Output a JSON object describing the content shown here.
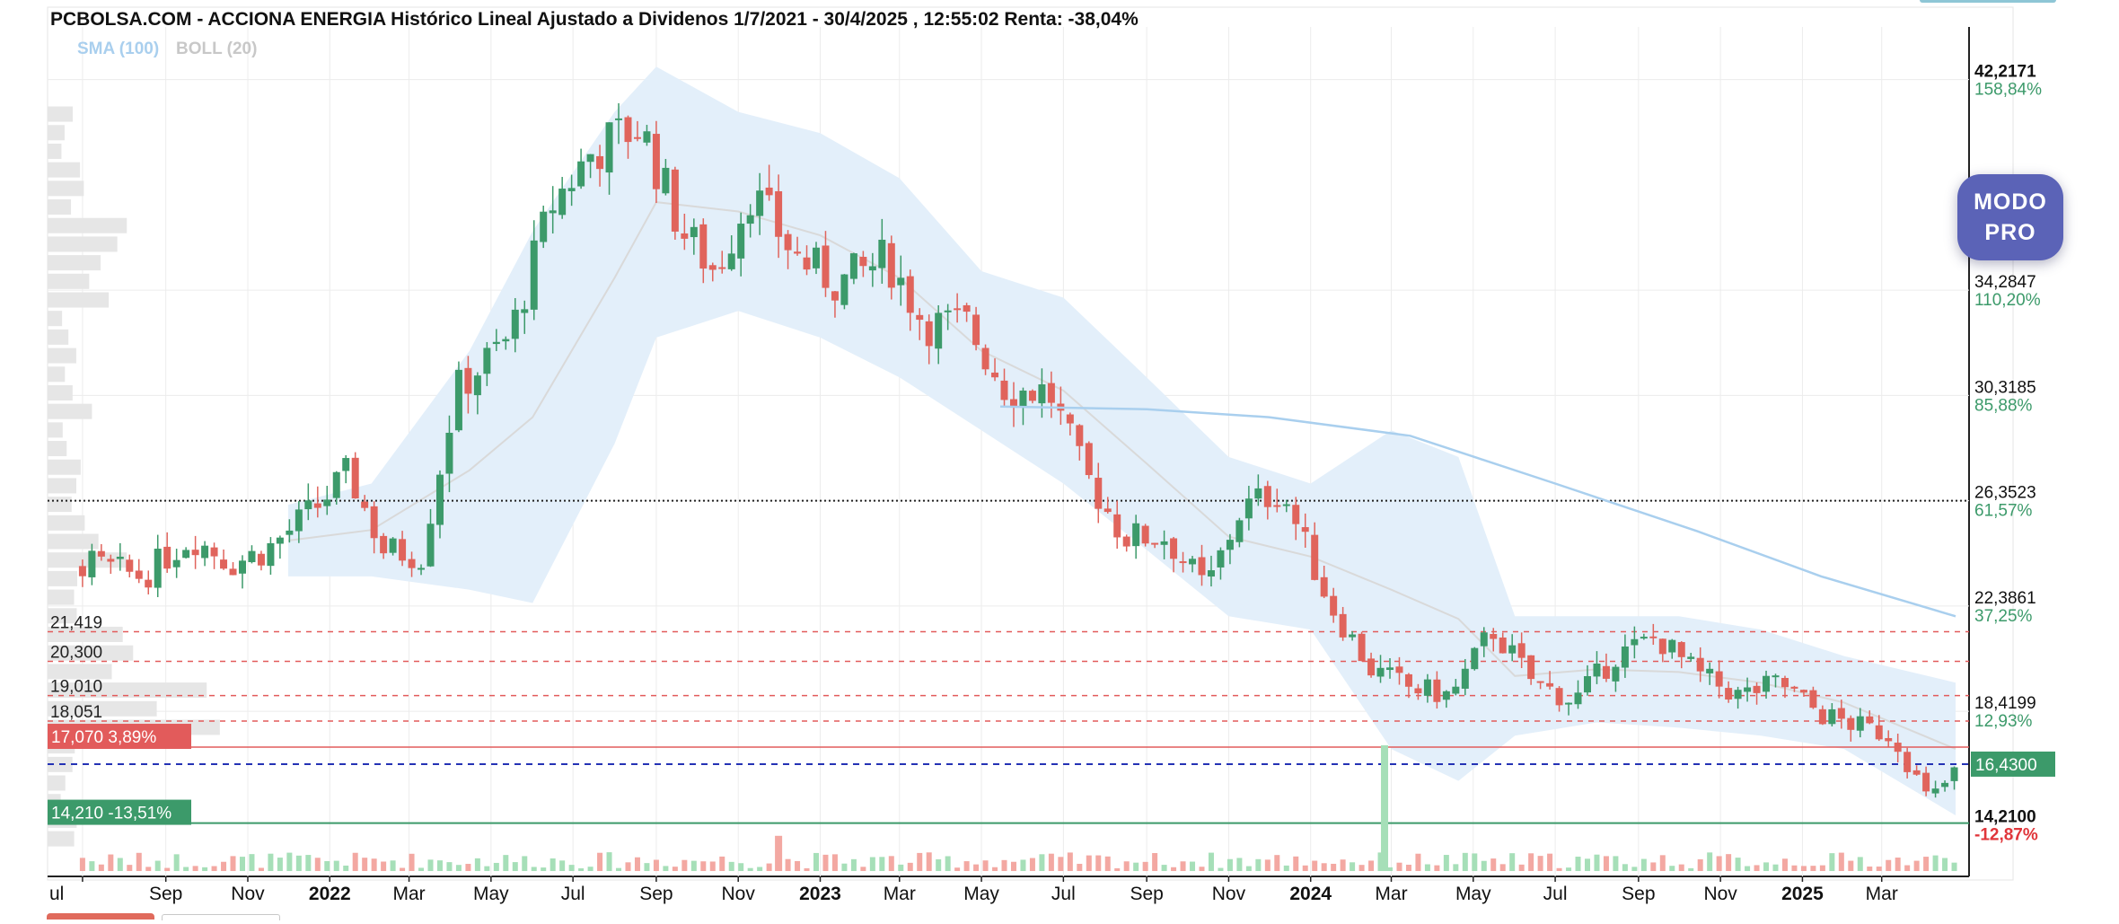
{
  "chart_data": {
    "type": "candlestick",
    "title": "PCBOLSA.COM - ACCIONA ENERGIA Histórico Lineal Ajustado a Dividenos 1/7/2021 - 30/4/2025 , 12:55:02 Renta: -38,04%",
    "legend": [
      {
        "label": "SMA (100)",
        "color": "#a9cfee"
      },
      {
        "label": "BOLL (20)",
        "color": "#c8c8c8"
      }
    ],
    "ylim": [
      12.2,
      44.2
    ],
    "y_ticks": [
      {
        "value": 42.2171,
        "label": "42,2171",
        "pct": "158,84%"
      },
      {
        "value": 34.2847,
        "label": "34,2847",
        "pct": "110,20%"
      },
      {
        "value": 30.3185,
        "label": "30,3185",
        "pct": "85,88%"
      },
      {
        "value": 26.3523,
        "label": "26,3523",
        "pct": "61,57%"
      },
      {
        "value": 22.3861,
        "label": "22,3861",
        "pct": "37,25%"
      },
      {
        "value": 18.4199,
        "label": "18,4199",
        "pct": "12,93%"
      }
    ],
    "x_ticks": [
      {
        "date": "2021-07-01",
        "label": "ul",
        "bold": false
      },
      {
        "date": "2021-09-01",
        "label": "Sep",
        "bold": false
      },
      {
        "date": "2021-11-01",
        "label": "Nov",
        "bold": false
      },
      {
        "date": "2022-01-01",
        "label": "2022",
        "bold": true
      },
      {
        "date": "2022-03-01",
        "label": "Mar",
        "bold": false
      },
      {
        "date": "2022-05-01",
        "label": "May",
        "bold": false
      },
      {
        "date": "2022-07-01",
        "label": "Jul",
        "bold": false
      },
      {
        "date": "2022-09-01",
        "label": "Sep",
        "bold": false
      },
      {
        "date": "2022-11-01",
        "label": "Nov",
        "bold": false
      },
      {
        "date": "2023-01-01",
        "label": "2023",
        "bold": true
      },
      {
        "date": "2023-03-01",
        "label": "Mar",
        "bold": false
      },
      {
        "date": "2023-05-01",
        "label": "May",
        "bold": false
      },
      {
        "date": "2023-07-01",
        "label": "Jul",
        "bold": false
      },
      {
        "date": "2023-09-01",
        "label": "Sep",
        "bold": false
      },
      {
        "date": "2023-11-01",
        "label": "Nov",
        "bold": false
      },
      {
        "date": "2024-01-01",
        "label": "2024",
        "bold": true
      },
      {
        "date": "2024-03-01",
        "label": "Mar",
        "bold": false
      },
      {
        "date": "2024-05-01",
        "label": "May",
        "bold": false
      },
      {
        "date": "2024-07-01",
        "label": "Jul",
        "bold": false
      },
      {
        "date": "2024-09-01",
        "label": "Sep",
        "bold": false
      },
      {
        "date": "2024-11-01",
        "label": "Nov",
        "bold": false
      },
      {
        "date": "2025-01-01",
        "label": "2025",
        "bold": true
      },
      {
        "date": "2025-03-01",
        "label": "Mar",
        "bold": false
      }
    ],
    "horizontal_levels": [
      {
        "value": 26.3523,
        "style": "black-dotted"
      },
      {
        "value": 21.419,
        "label": "21,419",
        "style": "red-dashed"
      },
      {
        "value": 20.3,
        "label": "20,300",
        "style": "red-dashed"
      },
      {
        "value": 19.01,
        "label": "19,010",
        "style": "red-dashed"
      },
      {
        "value": 18.051,
        "label": "18,051",
        "style": "red-dashed"
      },
      {
        "value": 17.07,
        "label": "17,070",
        "pct": "3,89%",
        "style": "red-solid"
      },
      {
        "value": 16.43,
        "style": "blue-dashed"
      },
      {
        "value": 14.21,
        "label": "14,210",
        "pct": "-13,51%",
        "style": "green-solid"
      }
    ],
    "last_price": {
      "value": 16.43,
      "label": "16,4300"
    },
    "low_marker": {
      "value": 14.21,
      "label": "14,2100",
      "pct": "-12,87%"
    },
    "price_path": [
      {
        "date": "2021-07-01",
        "close": 24.0
      },
      {
        "date": "2021-08-15",
        "close": 23.5
      },
      {
        "date": "2021-09-20",
        "close": 25.0
      },
      {
        "date": "2021-10-20",
        "close": 24.0
      },
      {
        "date": "2021-11-15",
        "close": 24.5
      },
      {
        "date": "2021-12-20",
        "close": 26.0
      },
      {
        "date": "2022-01-15",
        "close": 27.4
      },
      {
        "date": "2022-02-10",
        "close": 24.5
      },
      {
        "date": "2022-03-10",
        "close": 24.3
      },
      {
        "date": "2022-04-05",
        "close": 30.5
      },
      {
        "date": "2022-05-15",
        "close": 32.5
      },
      {
        "date": "2022-06-15",
        "close": 37.5
      },
      {
        "date": "2022-07-15",
        "close": 39.5
      },
      {
        "date": "2022-08-20",
        "close": 40.5
      },
      {
        "date": "2022-09-20",
        "close": 36.5
      },
      {
        "date": "2022-10-15",
        "close": 35.0
      },
      {
        "date": "2022-11-10",
        "close": 38.0
      },
      {
        "date": "2022-12-15",
        "close": 35.5
      },
      {
        "date": "2023-01-15",
        "close": 34.5
      },
      {
        "date": "2023-02-20",
        "close": 35.5
      },
      {
        "date": "2023-03-20",
        "close": 33.0
      },
      {
        "date": "2023-04-20",
        "close": 33.0
      },
      {
        "date": "2023-05-20",
        "close": 30.5
      },
      {
        "date": "2023-06-20",
        "close": 30.5
      },
      {
        "date": "2023-07-15",
        "close": 27.5
      },
      {
        "date": "2023-08-15",
        "close": 25.0
      },
      {
        "date": "2023-09-15",
        "close": 25.0
      },
      {
        "date": "2023-10-15",
        "close": 23.0
      },
      {
        "date": "2023-11-10",
        "close": 26.0
      },
      {
        "date": "2023-12-10",
        "close": 26.8
      },
      {
        "date": "2024-01-15",
        "close": 22.5
      },
      {
        "date": "2024-02-15",
        "close": 20.0
      },
      {
        "date": "2024-03-15",
        "close": 19.3
      },
      {
        "date": "2024-04-15",
        "close": 19.0
      },
      {
        "date": "2024-05-15",
        "close": 21.5
      },
      {
        "date": "2024-06-15",
        "close": 19.5
      },
      {
        "date": "2024-07-15",
        "close": 18.8
      },
      {
        "date": "2024-08-15",
        "close": 20.5
      },
      {
        "date": "2024-09-15",
        "close": 21.2
      },
      {
        "date": "2024-10-15",
        "close": 19.8
      },
      {
        "date": "2024-11-15",
        "close": 19.0
      },
      {
        "date": "2024-12-15",
        "close": 19.5
      },
      {
        "date": "2025-01-15",
        "close": 18.3
      },
      {
        "date": "2025-02-15",
        "close": 17.8
      },
      {
        "date": "2025-03-10",
        "close": 17.5
      },
      {
        "date": "2025-04-05",
        "close": 15.0
      },
      {
        "date": "2025-04-30",
        "close": 16.43
      }
    ],
    "sma100": [
      {
        "date": "2023-05-15",
        "value": 29.9
      },
      {
        "date": "2023-09-01",
        "value": 29.8
      },
      {
        "date": "2023-12-01",
        "value": 29.5
      },
      {
        "date": "2024-03-15",
        "value": 28.8
      },
      {
        "date": "2024-07-01",
        "value": 27.0
      },
      {
        "date": "2024-10-15",
        "value": 25.2
      },
      {
        "date": "2025-01-15",
        "value": 23.5
      },
      {
        "date": "2025-04-25",
        "value": 22.0
      }
    ],
    "boll_upper": [
      {
        "date": "2021-12-01",
        "value": 26.2
      },
      {
        "date": "2022-02-01",
        "value": 27.0
      },
      {
        "date": "2022-04-15",
        "value": 32.0
      },
      {
        "date": "2022-06-01",
        "value": 36.5
      },
      {
        "date": "2022-08-01",
        "value": 41.0
      },
      {
        "date": "2022-09-01",
        "value": 42.7
      },
      {
        "date": "2022-11-01",
        "value": 41.0
      },
      {
        "date": "2023-01-01",
        "value": 40.2
      },
      {
        "date": "2023-03-01",
        "value": 38.5
      },
      {
        "date": "2023-05-01",
        "value": 35.0
      },
      {
        "date": "2023-07-01",
        "value": 34.0
      },
      {
        "date": "2023-09-01",
        "value": 31.0
      },
      {
        "date": "2023-11-01",
        "value": 28.0
      },
      {
        "date": "2024-01-01",
        "value": 27.0
      },
      {
        "date": "2024-03-01",
        "value": 29.0
      },
      {
        "date": "2024-04-20",
        "value": 28.0
      },
      {
        "date": "2024-06-01",
        "value": 22.0
      },
      {
        "date": "2024-08-01",
        "value": 22.0
      },
      {
        "date": "2024-10-01",
        "value": 22.0
      },
      {
        "date": "2024-12-01",
        "value": 21.5
      },
      {
        "date": "2025-02-01",
        "value": 20.5
      },
      {
        "date": "2025-04-25",
        "value": 19.5
      }
    ],
    "boll_lower": [
      {
        "date": "2021-12-01",
        "value": 23.5
      },
      {
        "date": "2022-02-01",
        "value": 23.5
      },
      {
        "date": "2022-04-15",
        "value": 23.0
      },
      {
        "date": "2022-06-01",
        "value": 22.5
      },
      {
        "date": "2022-08-01",
        "value": 28.5
      },
      {
        "date": "2022-09-01",
        "value": 32.5
      },
      {
        "date": "2022-11-01",
        "value": 33.5
      },
      {
        "date": "2023-01-01",
        "value": 32.5
      },
      {
        "date": "2023-03-01",
        "value": 31.0
      },
      {
        "date": "2023-05-01",
        "value": 29.0
      },
      {
        "date": "2023-07-01",
        "value": 27.0
      },
      {
        "date": "2023-09-01",
        "value": 24.5
      },
      {
        "date": "2023-11-01",
        "value": 22.0
      },
      {
        "date": "2024-01-01",
        "value": 21.5
      },
      {
        "date": "2024-03-01",
        "value": 17.0
      },
      {
        "date": "2024-04-20",
        "value": 15.8
      },
      {
        "date": "2024-06-01",
        "value": 17.5
      },
      {
        "date": "2024-08-01",
        "value": 18.0
      },
      {
        "date": "2024-10-01",
        "value": 17.8
      },
      {
        "date": "2024-12-01",
        "value": 17.5
      },
      {
        "date": "2025-02-01",
        "value": 17.0
      },
      {
        "date": "2025-04-25",
        "value": 14.5
      }
    ],
    "volume_spikes": [
      {
        "date": "2022-12-01",
        "rel": 0.28,
        "color": "red"
      },
      {
        "date": "2024-02-25",
        "rel": 1.0,
        "color": "green"
      }
    ]
  },
  "ui": {
    "pro_button_line1": "MODO",
    "pro_button_line2": "PRO"
  },
  "colors": {
    "up": "#3c9a6a",
    "down": "#e0645c",
    "band": "#e3effa",
    "sma": "#a9cfee",
    "boll_mid": "#d9d9d9",
    "level_red": "#e25b5b",
    "level_green": "#3c9a6a",
    "level_blue": "#2432b5",
    "pro_button": "#5b63b7"
  }
}
